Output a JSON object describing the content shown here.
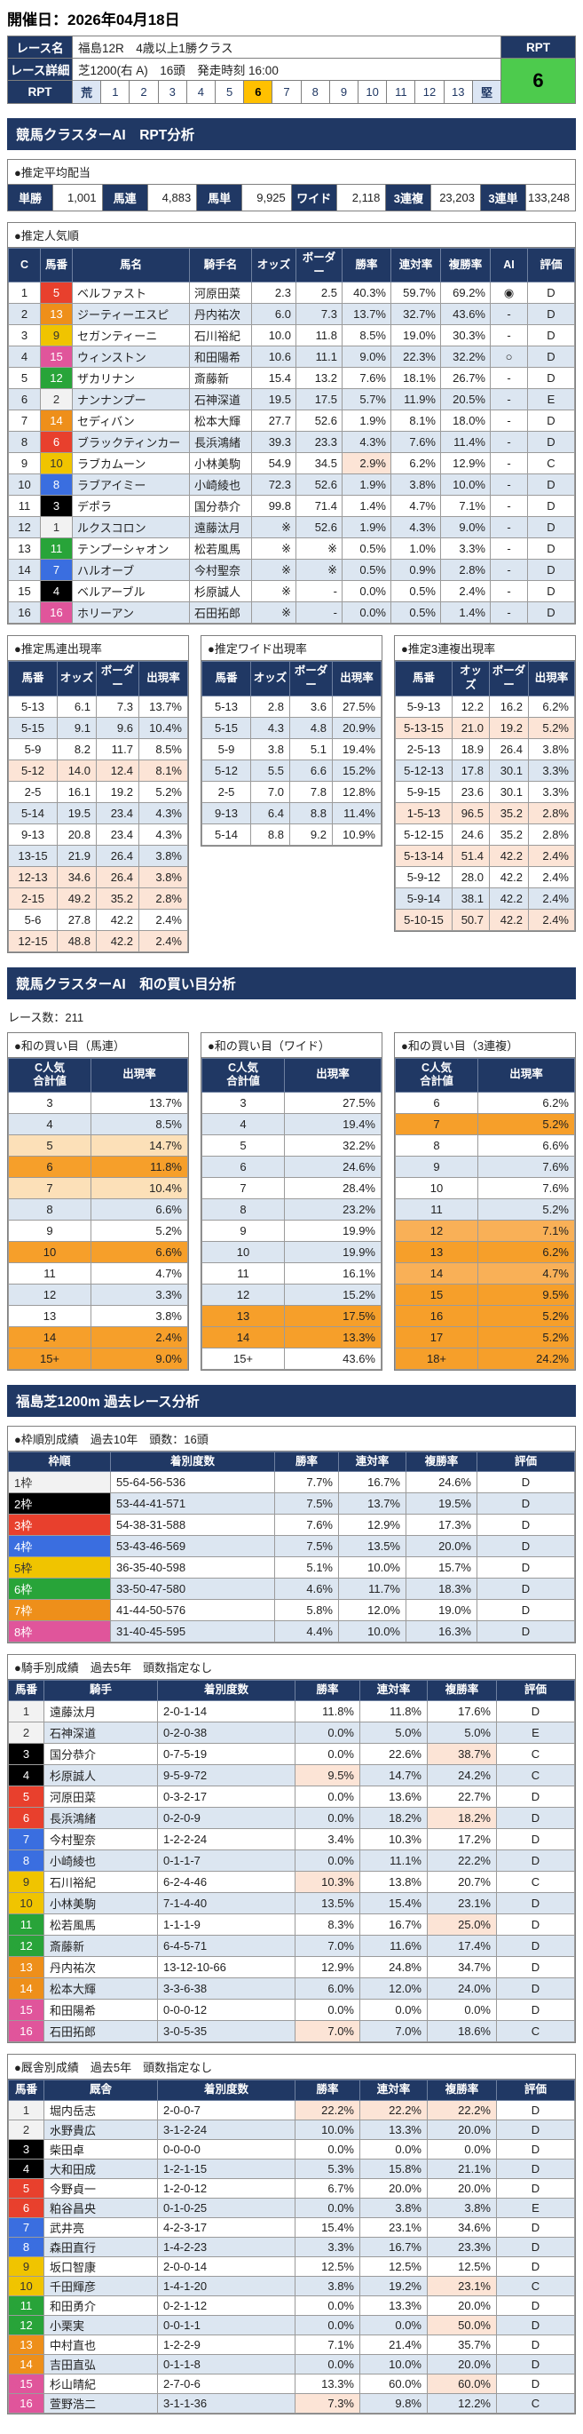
{
  "header": {
    "date": "開催日：2026年04月18日"
  },
  "race_info": {
    "name_label": "レース名",
    "name_value": "福島12R　4歳以上1勝クラス",
    "detail_label": "レース詳細",
    "detail_value": "芝1200(右 A)　16頭　発走時刻 16:00",
    "rpt_label": "RPT",
    "rpt_header": "RPT",
    "rpt_value": "6",
    "rpt_scale": [
      "荒",
      "1",
      "2",
      "3",
      "4",
      "5",
      "6",
      "7",
      "8",
      "9",
      "10",
      "11",
      "12",
      "13",
      "堅"
    ],
    "rpt_selected_index": 6
  },
  "section_titles": {
    "rpt": "競馬クラスターAI　RPT分析",
    "wa": "競馬クラスターAI　和の買い目分析",
    "past": "福島芝1200m 過去レース分析"
  },
  "payout": {
    "title": "●推定平均配当",
    "items": [
      {
        "label": "単勝",
        "value": "1,001"
      },
      {
        "label": "馬連",
        "value": "4,883"
      },
      {
        "label": "馬単",
        "value": "9,925"
      },
      {
        "label": "ワイド",
        "value": "2,118"
      },
      {
        "label": "3連複",
        "value": "23,203"
      },
      {
        "label": "3連単",
        "value": "133,248"
      }
    ]
  },
  "popularity": {
    "title": "●推定人気順",
    "headers": [
      "C",
      "馬番",
      "馬名",
      "騎手名",
      "オッズ",
      "ボーダー",
      "勝率",
      "連対率",
      "複勝率",
      "AI",
      "評価"
    ],
    "rows": [
      [
        "1",
        "5",
        "ベルファスト",
        "河原田菜",
        "2.3",
        "2.5",
        "40.3%",
        "59.7%",
        "69.2%",
        "◉",
        "D",
        ""
      ],
      [
        "2",
        "13",
        "ジーティーエスピ",
        "丹内祐次",
        "6.0",
        "7.3",
        "13.7%",
        "32.7%",
        "43.6%",
        "-",
        "D",
        ""
      ],
      [
        "3",
        "9",
        "セガンティーニ",
        "石川裕紀",
        "10.0",
        "11.8",
        "8.5%",
        "19.0%",
        "30.3%",
        "-",
        "D",
        ""
      ],
      [
        "4",
        "15",
        "ウィンストン",
        "和田陽希",
        "10.6",
        "11.1",
        "9.0%",
        "22.3%",
        "32.2%",
        "○",
        "D",
        ""
      ],
      [
        "5",
        "12",
        "ザカリナン",
        "斎藤新",
        "15.4",
        "13.2",
        "7.6%",
        "18.1%",
        "26.7%",
        "-",
        "D",
        ""
      ],
      [
        "6",
        "2",
        "ナンナンプー",
        "石神深道",
        "19.5",
        "17.5",
        "5.7%",
        "11.9%",
        "20.5%",
        "-",
        "E",
        ""
      ],
      [
        "7",
        "14",
        "セディバン",
        "松本大輝",
        "27.7",
        "52.6",
        "1.9%",
        "8.1%",
        "18.0%",
        "-",
        "D",
        ""
      ],
      [
        "8",
        "6",
        "ブラックティンカー",
        "長浜鴻緒",
        "39.3",
        "23.3",
        "4.3%",
        "7.6%",
        "11.4%",
        "-",
        "D",
        ""
      ],
      [
        "9",
        "10",
        "ラブカムーン",
        "小林美駒",
        "54.9",
        "34.5",
        "2.9%",
        "6.2%",
        "12.9%",
        "-",
        "C",
        "win"
      ],
      [
        "10",
        "8",
        "ラブアイミー",
        "小崎綾也",
        "72.3",
        "52.6",
        "1.9%",
        "3.8%",
        "10.0%",
        "-",
        "D",
        ""
      ],
      [
        "11",
        "3",
        "デポラ",
        "国分恭介",
        "99.8",
        "71.4",
        "1.4%",
        "4.7%",
        "7.1%",
        "-",
        "D",
        ""
      ],
      [
        "12",
        "1",
        "ルクスコロン",
        "遠藤汰月",
        "※",
        "52.6",
        "1.9%",
        "4.3%",
        "9.0%",
        "-",
        "D",
        ""
      ],
      [
        "13",
        "11",
        "テンプーシャオン",
        "松若風馬",
        "※",
        "※",
        "0.5%",
        "1.0%",
        "3.3%",
        "-",
        "D",
        ""
      ],
      [
        "14",
        "7",
        "ハルオーブ",
        "今村聖奈",
        "※",
        "※",
        "0.5%",
        "0.9%",
        "2.8%",
        "-",
        "D",
        ""
      ],
      [
        "15",
        "4",
        "ベルアーブル",
        "杉原誠人",
        "※",
        "-",
        "0.0%",
        "0.5%",
        "2.4%",
        "-",
        "D",
        ""
      ],
      [
        "16",
        "16",
        "ホリーアン",
        "石田拓郎",
        "※",
        "-",
        "0.0%",
        "0.5%",
        "1.4%",
        "-",
        "D",
        ""
      ]
    ]
  },
  "appearance": {
    "headers": [
      "馬番",
      "オッズ",
      "ボーダー",
      "出現率"
    ],
    "umaren": {
      "title": "●推定馬連出現率",
      "rows": [
        [
          "5-13",
          "6.1",
          "7.3",
          "13.7%",
          "white"
        ],
        [
          "5-15",
          "9.1",
          "9.6",
          "10.4%",
          "blue"
        ],
        [
          "5-9",
          "8.2",
          "11.7",
          "8.5%",
          "white"
        ],
        [
          "5-12",
          "14.0",
          "12.4",
          "8.1%",
          "pink"
        ],
        [
          "2-5",
          "16.1",
          "19.2",
          "5.2%",
          "white"
        ],
        [
          "5-14",
          "19.5",
          "23.4",
          "4.3%",
          "blue"
        ],
        [
          "9-13",
          "20.8",
          "23.4",
          "4.3%",
          "white"
        ],
        [
          "13-15",
          "21.9",
          "26.4",
          "3.8%",
          "blue"
        ],
        [
          "12-13",
          "34.6",
          "26.4",
          "3.8%",
          "pink"
        ],
        [
          "2-15",
          "49.2",
          "35.2",
          "2.8%",
          "pink"
        ],
        [
          "5-6",
          "27.8",
          "42.2",
          "2.4%",
          "white"
        ],
        [
          "12-15",
          "48.8",
          "42.2",
          "2.4%",
          "pink"
        ]
      ]
    },
    "wide": {
      "title": "●推定ワイド出現率",
      "rows": [
        [
          "5-13",
          "2.8",
          "3.6",
          "27.5%",
          "white"
        ],
        [
          "5-15",
          "4.3",
          "4.8",
          "20.9%",
          "blue"
        ],
        [
          "5-9",
          "3.8",
          "5.1",
          "19.4%",
          "white"
        ],
        [
          "5-12",
          "5.5",
          "6.6",
          "15.2%",
          "blue"
        ],
        [
          "2-5",
          "7.0",
          "7.8",
          "12.8%",
          "white"
        ],
        [
          "9-13",
          "6.4",
          "8.8",
          "11.4%",
          "blue"
        ],
        [
          "5-14",
          "8.8",
          "9.2",
          "10.9%",
          "white"
        ]
      ]
    },
    "sanrenpuku": {
      "title": "●推定3連複出現率",
      "rows": [
        [
          "5-9-13",
          "12.2",
          "16.2",
          "6.2%",
          "white"
        ],
        [
          "5-13-15",
          "21.0",
          "19.2",
          "5.2%",
          "pink"
        ],
        [
          "2-5-13",
          "18.9",
          "26.4",
          "3.8%",
          "white"
        ],
        [
          "5-12-13",
          "17.8",
          "30.1",
          "3.3%",
          "blue"
        ],
        [
          "5-9-15",
          "23.6",
          "30.1",
          "3.3%",
          "white"
        ],
        [
          "1-5-13",
          "96.5",
          "35.2",
          "2.8%",
          "pink"
        ],
        [
          "5-12-15",
          "24.6",
          "35.2",
          "2.8%",
          "white"
        ],
        [
          "5-13-14",
          "51.4",
          "42.2",
          "2.4%",
          "pink"
        ],
        [
          "5-9-12",
          "28.0",
          "42.2",
          "2.4%",
          "white"
        ],
        [
          "5-9-14",
          "38.1",
          "42.2",
          "2.4%",
          "blue"
        ],
        [
          "5-10-15",
          "50.7",
          "42.2",
          "2.4%",
          "pink"
        ]
      ]
    }
  },
  "wa_analysis": {
    "race_count_label": "レース数：211",
    "headers": [
      "C人気\n合計値",
      "出現率"
    ],
    "umaren": {
      "title": "●和の買い目（馬連）",
      "rows": [
        [
          "3",
          "13.7%",
          "white"
        ],
        [
          "4",
          "8.5%",
          "blue"
        ],
        [
          "5",
          "14.7%",
          "o1"
        ],
        [
          "6",
          "11.8%",
          "o3"
        ],
        [
          "7",
          "10.4%",
          "o1"
        ],
        [
          "8",
          "6.6%",
          "blue"
        ],
        [
          "9",
          "5.2%",
          "white"
        ],
        [
          "10",
          "6.6%",
          "o3"
        ],
        [
          "11",
          "4.7%",
          "white"
        ],
        [
          "12",
          "3.3%",
          "blue"
        ],
        [
          "13",
          "3.8%",
          "white"
        ],
        [
          "14",
          "2.4%",
          "o3"
        ],
        [
          "15+",
          "9.0%",
          "o3"
        ]
      ]
    },
    "wide": {
      "title": "●和の買い目（ワイド）",
      "rows": [
        [
          "3",
          "27.5%",
          "white"
        ],
        [
          "4",
          "19.4%",
          "blue"
        ],
        [
          "5",
          "32.2%",
          "white"
        ],
        [
          "6",
          "24.6%",
          "blue"
        ],
        [
          "7",
          "28.4%",
          "white"
        ],
        [
          "8",
          "23.2%",
          "blue"
        ],
        [
          "9",
          "19.9%",
          "white"
        ],
        [
          "10",
          "19.9%",
          "blue"
        ],
        [
          "11",
          "16.1%",
          "white"
        ],
        [
          "12",
          "15.2%",
          "blue"
        ],
        [
          "13",
          "17.5%",
          "o3"
        ],
        [
          "14",
          "13.3%",
          "o3"
        ],
        [
          "15+",
          "43.6%",
          "white"
        ]
      ]
    },
    "sanrenpuku": {
      "title": "●和の買い目（3連複）",
      "rows": [
        [
          "6",
          "6.2%",
          "white"
        ],
        [
          "7",
          "5.2%",
          "o3"
        ],
        [
          "8",
          "6.6%",
          "white"
        ],
        [
          "9",
          "7.6%",
          "blue"
        ],
        [
          "10",
          "7.6%",
          "white"
        ],
        [
          "11",
          "5.2%",
          "blue"
        ],
        [
          "12",
          "7.1%",
          "o2"
        ],
        [
          "13",
          "6.2%",
          "o3"
        ],
        [
          "14",
          "4.7%",
          "o2"
        ],
        [
          "15",
          "9.5%",
          "o3"
        ],
        [
          "16",
          "5.2%",
          "o3"
        ],
        [
          "17",
          "5.2%",
          "o3"
        ],
        [
          "18+",
          "24.2%",
          "o3"
        ]
      ]
    }
  },
  "past_analysis": {
    "waku": {
      "title": "●枠順別成績　過去10年　頭数：16頭",
      "headers": [
        "枠順",
        "着別度数",
        "勝率",
        "連対率",
        "複勝率",
        "評価"
      ],
      "rows": [
        [
          "1枠",
          "55-64-56-536",
          "7.7%",
          "16.7%",
          "24.6%",
          "D"
        ],
        [
          "2枠",
          "53-44-41-571",
          "7.5%",
          "13.7%",
          "19.5%",
          "D"
        ],
        [
          "3枠",
          "54-38-31-588",
          "7.6%",
          "12.9%",
          "17.3%",
          "D"
        ],
        [
          "4枠",
          "53-43-46-569",
          "7.5%",
          "13.5%",
          "20.0%",
          "D"
        ],
        [
          "5枠",
          "36-35-40-598",
          "5.1%",
          "10.0%",
          "15.7%",
          "D"
        ],
        [
          "6枠",
          "33-50-47-580",
          "4.6%",
          "11.7%",
          "18.3%",
          "D"
        ],
        [
          "7枠",
          "41-44-50-576",
          "5.8%",
          "12.0%",
          "19.0%",
          "D"
        ],
        [
          "8枠",
          "31-40-45-595",
          "4.4%",
          "10.0%",
          "16.3%",
          "D"
        ]
      ]
    },
    "jockey": {
      "title": "●騎手別成績　過去5年　頭数指定なし",
      "headers": [
        "馬番",
        "騎手",
        "着別度数",
        "勝率",
        "連対率",
        "複勝率",
        "評価"
      ],
      "rows": [
        [
          "1",
          "遠藤汰月",
          "2-0-1-14",
          "11.8%",
          "11.8%",
          "17.6%",
          "D",
          []
        ],
        [
          "2",
          "石神深道",
          "0-2-0-38",
          "0.0%",
          "5.0%",
          "5.0%",
          "E",
          []
        ],
        [
          "3",
          "国分恭介",
          "0-7-5-19",
          "0.0%",
          "22.6%",
          "38.7%",
          "C",
          [
            "fuku"
          ]
        ],
        [
          "4",
          "杉原誠人",
          "9-5-9-72",
          "9.5%",
          "14.7%",
          "24.2%",
          "C",
          [
            "win"
          ]
        ],
        [
          "5",
          "河原田菜",
          "0-3-2-17",
          "0.0%",
          "13.6%",
          "22.7%",
          "D",
          []
        ],
        [
          "6",
          "長浜鴻緒",
          "0-2-0-9",
          "0.0%",
          "18.2%",
          "18.2%",
          "D",
          [
            "fuku"
          ]
        ],
        [
          "7",
          "今村聖奈",
          "1-2-2-24",
          "3.4%",
          "10.3%",
          "17.2%",
          "D",
          []
        ],
        [
          "8",
          "小崎綾也",
          "0-1-1-7",
          "0.0%",
          "11.1%",
          "22.2%",
          "D",
          []
        ],
        [
          "9",
          "石川裕紀",
          "6-2-4-46",
          "10.3%",
          "13.8%",
          "20.7%",
          "C",
          [
            "win"
          ]
        ],
        [
          "10",
          "小林美駒",
          "7-1-4-40",
          "13.5%",
          "15.4%",
          "23.1%",
          "D",
          []
        ],
        [
          "11",
          "松若風馬",
          "1-1-1-9",
          "8.3%",
          "16.7%",
          "25.0%",
          "D",
          [
            "fuku"
          ]
        ],
        [
          "12",
          "斎藤新",
          "6-4-5-71",
          "7.0%",
          "11.6%",
          "17.4%",
          "D",
          []
        ],
        [
          "13",
          "丹内祐次",
          "13-12-10-66",
          "12.9%",
          "24.8%",
          "34.7%",
          "D",
          []
        ],
        [
          "14",
          "松本大輝",
          "3-3-6-38",
          "6.0%",
          "12.0%",
          "24.0%",
          "D",
          []
        ],
        [
          "15",
          "和田陽希",
          "0-0-0-12",
          "0.0%",
          "0.0%",
          "0.0%",
          "D",
          []
        ],
        [
          "16",
          "石田拓郎",
          "3-0-5-35",
          "7.0%",
          "7.0%",
          "18.6%",
          "C",
          [
            "win"
          ]
        ]
      ]
    },
    "trainer": {
      "title": "●厩舎別成績　過去5年　頭数指定なし",
      "headers": [
        "馬番",
        "厩舎",
        "着別度数",
        "勝率",
        "連対率",
        "複勝率",
        "評価"
      ],
      "rows": [
        [
          "1",
          "堀内岳志",
          "2-0-0-7",
          "22.2%",
          "22.2%",
          "22.2%",
          "D",
          [
            "win",
            "ren",
            "fuku"
          ]
        ],
        [
          "2",
          "水野貴広",
          "3-1-2-24",
          "10.0%",
          "13.3%",
          "20.0%",
          "D",
          []
        ],
        [
          "3",
          "柴田卓",
          "0-0-0-0",
          "0.0%",
          "0.0%",
          "0.0%",
          "D",
          []
        ],
        [
          "4",
          "大和田成",
          "1-2-1-15",
          "5.3%",
          "15.8%",
          "21.1%",
          "D",
          []
        ],
        [
          "5",
          "今野貞一",
          "1-2-0-12",
          "6.7%",
          "20.0%",
          "20.0%",
          "D",
          []
        ],
        [
          "6",
          "粕谷昌央",
          "0-1-0-25",
          "0.0%",
          "3.8%",
          "3.8%",
          "E",
          []
        ],
        [
          "7",
          "武井亮",
          "4-2-3-17",
          "15.4%",
          "23.1%",
          "34.6%",
          "D",
          []
        ],
        [
          "8",
          "森田直行",
          "1-4-2-23",
          "3.3%",
          "16.7%",
          "23.3%",
          "D",
          []
        ],
        [
          "9",
          "坂口智康",
          "2-0-0-14",
          "12.5%",
          "12.5%",
          "12.5%",
          "D",
          []
        ],
        [
          "10",
          "千田輝彦",
          "1-4-1-20",
          "3.8%",
          "19.2%",
          "23.1%",
          "C",
          [
            "fuku"
          ]
        ],
        [
          "11",
          "和田勇介",
          "0-2-1-12",
          "0.0%",
          "13.3%",
          "20.0%",
          "D",
          []
        ],
        [
          "12",
          "小栗実",
          "0-0-1-1",
          "0.0%",
          "0.0%",
          "50.0%",
          "D",
          [
            "fuku"
          ]
        ],
        [
          "13",
          "中村直也",
          "1-2-2-9",
          "7.1%",
          "21.4%",
          "35.7%",
          "D",
          []
        ],
        [
          "14",
          "吉田直弘",
          "0-1-1-8",
          "0.0%",
          "10.0%",
          "20.0%",
          "D",
          []
        ],
        [
          "15",
          "杉山晴紀",
          "2-7-0-6",
          "13.3%",
          "60.0%",
          "60.0%",
          "D",
          [
            "fuku"
          ]
        ],
        [
          "16",
          "萱野浩二",
          "3-1-1-36",
          "7.3%",
          "9.8%",
          "12.2%",
          "C",
          [
            "win"
          ]
        ]
      ]
    }
  },
  "colors": {
    "navy_header": "#203864",
    "row_alt_blue": "#dce6f1",
    "cell_highlight_pink": "#fce4d6",
    "rpt_selected": "#ffc000",
    "rpt_value_green": "#4dcb4d",
    "orange_pale": "#fce0b8",
    "orange_mid": "#f9b057",
    "orange_strong": "#f69f2a",
    "waku": {
      "1": "#f2f2f2",
      "2": "#000000",
      "3": "#e8402d",
      "4": "#3a6ee0",
      "5": "#f0c400",
      "6": "#28a439",
      "7": "#ee8f1a",
      "8": "#e0559b"
    }
  }
}
